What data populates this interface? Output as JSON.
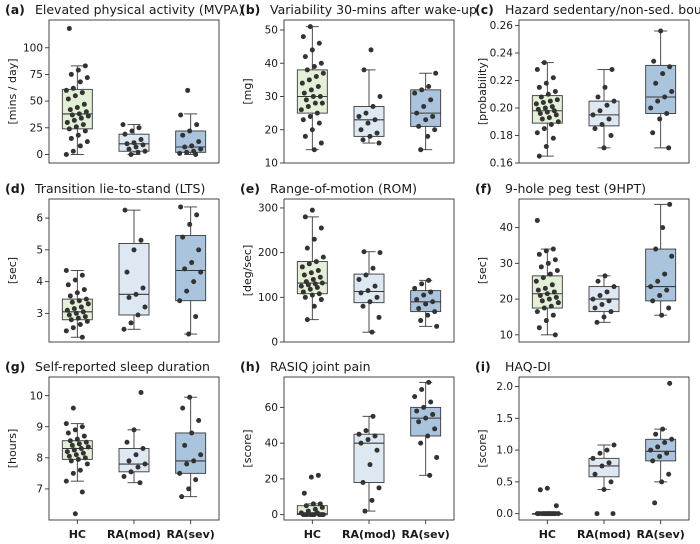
{
  "figure": {
    "x_categories": [
      "HC",
      "RA(mod)",
      "RA(sev)"
    ]
  },
  "colors": {
    "HC": "#e3efd6",
    "RA(mod)": "#dde8f2",
    "RA(sev)": "#a9c4dc"
  },
  "chart_data": [
    {
      "type": "box",
      "label": "(a)",
      "title": "Elevated physical activity (MVPA)",
      "ylabel": "[mins / day]",
      "ylim": [
        -8,
        126
      ],
      "yticks": [
        0,
        25,
        50,
        75,
        100
      ],
      "groups": [
        {
          "name": "HC",
          "q1": 24,
          "median": 38,
          "q3": 61,
          "whisker_low": 0,
          "whisker_high": 83,
          "points": [
            0,
            3,
            8,
            12,
            15,
            18,
            22,
            24,
            26,
            28,
            30,
            32,
            34,
            36,
            37,
            38,
            40,
            42,
            44,
            47,
            52,
            55,
            58,
            60,
            62,
            68,
            72,
            75,
            79,
            83,
            118
          ]
        },
        {
          "name": "RA(mod)",
          "q1": 3,
          "median": 10,
          "q3": 19,
          "whisker_low": 0,
          "whisker_high": 28,
          "points": [
            0,
            2,
            3,
            5,
            7,
            9,
            10,
            11,
            14,
            19,
            22,
            25,
            28
          ]
        },
        {
          "name": "RA(sev)",
          "q1": 2,
          "median": 7,
          "q3": 22,
          "whisker_low": 0,
          "whisker_high": 38,
          "points": [
            0,
            1,
            2,
            3,
            5,
            7,
            8,
            12,
            18,
            22,
            28,
            37,
            60
          ]
        }
      ]
    },
    {
      "type": "box",
      "label": "(b)",
      "title": "Variability 30-mins after wake-up",
      "ylabel": "[mg]",
      "ylim": [
        10,
        53
      ],
      "yticks": [
        10,
        20,
        30,
        40,
        50
      ],
      "groups": [
        {
          "name": "HC",
          "q1": 25,
          "median": 30,
          "q3": 38,
          "whisker_low": 14,
          "whisker_high": 51,
          "points": [
            14,
            16,
            18,
            20,
            22,
            23,
            24,
            25,
            26,
            27,
            28,
            28,
            29,
            30,
            30,
            31,
            32,
            33,
            34,
            35,
            36,
            37,
            38,
            39,
            40,
            42,
            44,
            46,
            48,
            51
          ]
        },
        {
          "name": "RA(mod)",
          "q1": 18,
          "median": 23,
          "q3": 27,
          "whisker_low": 16,
          "whisker_high": 38,
          "points": [
            16,
            17,
            18,
            19,
            20,
            22,
            23,
            24,
            25,
            27,
            30,
            38,
            44
          ]
        },
        {
          "name": "RA(sev)",
          "q1": 21,
          "median": 25,
          "q3": 32,
          "whisker_low": 14,
          "whisker_high": 37,
          "points": [
            14,
            18,
            20,
            21,
            23,
            24,
            25,
            27,
            29,
            31,
            32,
            33,
            37
          ]
        }
      ]
    },
    {
      "type": "box",
      "label": "(c)",
      "title": "Hazard sedentary/non-sed. bouts",
      "ylabel": "[probability]",
      "ylim": [
        0.16,
        0.264
      ],
      "yticks": [
        0.16,
        0.18,
        0.2,
        0.22,
        0.24,
        0.26
      ],
      "groups": [
        {
          "name": "HC",
          "q1": 0.189,
          "median": 0.198,
          "q3": 0.209,
          "whisker_low": 0.165,
          "whisker_high": 0.233,
          "points": [
            0.165,
            0.172,
            0.178,
            0.182,
            0.185,
            0.188,
            0.19,
            0.192,
            0.193,
            0.195,
            0.196,
            0.197,
            0.198,
            0.199,
            0.2,
            0.201,
            0.203,
            0.204,
            0.205,
            0.206,
            0.208,
            0.21,
            0.212,
            0.215,
            0.218,
            0.222,
            0.228,
            0.233
          ]
        },
        {
          "name": "RA(mod)",
          "q1": 0.187,
          "median": 0.195,
          "q3": 0.205,
          "whisker_low": 0.171,
          "whisker_high": 0.228,
          "points": [
            0.171,
            0.18,
            0.185,
            0.188,
            0.192,
            0.195,
            0.198,
            0.202,
            0.205,
            0.208,
            0.215,
            0.228
          ]
        },
        {
          "name": "RA(sev)",
          "q1": 0.196,
          "median": 0.208,
          "q3": 0.231,
          "whisker_low": 0.171,
          "whisker_high": 0.256,
          "points": [
            0.171,
            0.182,
            0.192,
            0.196,
            0.2,
            0.205,
            0.208,
            0.212,
            0.218,
            0.225,
            0.23,
            0.234,
            0.256
          ]
        }
      ]
    },
    {
      "type": "box",
      "label": "(d)",
      "title": "Transition lie-to-stand (LTS)",
      "ylabel": "[sec]",
      "ylim": [
        2.1,
        6.6
      ],
      "yticks": [
        3,
        4,
        5,
        6
      ],
      "groups": [
        {
          "name": "HC",
          "q1": 2.8,
          "median": 3.05,
          "q3": 3.45,
          "whisker_low": 2.25,
          "whisker_high": 4.35,
          "points": [
            2.25,
            2.45,
            2.55,
            2.65,
            2.75,
            2.8,
            2.85,
            2.9,
            2.95,
            3.0,
            3.05,
            3.1,
            3.15,
            3.2,
            3.3,
            3.35,
            3.4,
            3.45,
            3.55,
            3.65,
            3.75,
            3.9,
            4.05,
            4.2,
            4.35
          ]
        },
        {
          "name": "RA(mod)",
          "q1": 2.95,
          "median": 3.6,
          "q3": 5.2,
          "whisker_low": 2.5,
          "whisker_high": 6.25,
          "points": [
            2.5,
            2.7,
            2.95,
            3.2,
            3.5,
            3.6,
            3.8,
            4.3,
            5.0,
            5.3,
            6.25
          ]
        },
        {
          "name": "RA(sev)",
          "q1": 3.4,
          "median": 4.35,
          "q3": 5.45,
          "whisker_low": 2.35,
          "whisker_high": 6.35,
          "points": [
            2.35,
            2.9,
            3.4,
            3.7,
            4.0,
            4.3,
            4.4,
            4.6,
            5.0,
            5.4,
            5.8,
            6.1,
            6.35
          ]
        }
      ]
    },
    {
      "type": "box",
      "label": "(e)",
      "title": "Range-of-motion (ROM)",
      "ylabel": "[deg/sec]",
      "ylim": [
        0,
        320
      ],
      "yticks": [
        0,
        100,
        200,
        300
      ],
      "groups": [
        {
          "name": "HC",
          "q1": 108,
          "median": 132,
          "q3": 180,
          "whisker_low": 50,
          "whisker_high": 280,
          "points": [
            50,
            80,
            95,
            100,
            105,
            108,
            112,
            118,
            122,
            125,
            128,
            130,
            132,
            135,
            140,
            145,
            150,
            155,
            160,
            168,
            175,
            180,
            190,
            210,
            230,
            255,
            280,
            295
          ]
        },
        {
          "name": "RA(mod)",
          "q1": 88,
          "median": 113,
          "q3": 152,
          "whisker_low": 22,
          "whisker_high": 202,
          "points": [
            22,
            55,
            80,
            90,
            100,
            110,
            115,
            125,
            140,
            150,
            165,
            200,
            202
          ]
        },
        {
          "name": "RA(sev)",
          "q1": 68,
          "median": 90,
          "q3": 115,
          "whisker_low": 35,
          "whisker_high": 138,
          "points": [
            35,
            48,
            60,
            68,
            75,
            85,
            90,
            95,
            105,
            112,
            120,
            130,
            138
          ]
        }
      ]
    },
    {
      "type": "box",
      "label": "(f)",
      "title": "9-hole peg test (9HPT)",
      "ylabel": "[sec]",
      "ylim": [
        8,
        48
      ],
      "yticks": [
        10,
        20,
        30,
        40
      ],
      "groups": [
        {
          "name": "HC",
          "q1": 17.5,
          "median": 21.5,
          "q3": 26.5,
          "whisker_low": 10,
          "whisker_high": 34,
          "points": [
            10,
            12,
            14,
            15.5,
            16.5,
            17.5,
            18,
            19,
            19.5,
            20,
            20.5,
            21,
            21.5,
            22,
            22.5,
            23,
            24,
            25,
            26,
            27,
            28,
            29,
            30,
            31,
            32.5,
            33.5,
            34,
            42
          ]
        },
        {
          "name": "RA(mod)",
          "q1": 16.5,
          "median": 20,
          "q3": 23.5,
          "whisker_low": 13.5,
          "whisker_high": 26.5,
          "points": [
            13.5,
            15,
            16.5,
            17.5,
            18.5,
            19.5,
            20,
            21,
            22,
            23.5,
            25,
            26.5
          ]
        },
        {
          "name": "RA(sev)",
          "q1": 19.5,
          "median": 23.5,
          "q3": 34,
          "whisker_low": 15.5,
          "whisker_high": 46.5,
          "points": [
            15.5,
            17.5,
            19.5,
            21,
            22.5,
            23.5,
            25,
            27,
            32,
            34,
            40,
            46.5
          ]
        }
      ]
    },
    {
      "type": "box",
      "label": "(g)",
      "title": "Self-reported sleep duration",
      "ylabel": "[hours]",
      "ylim": [
        6.0,
        10.6
      ],
      "yticks": [
        7,
        8,
        9,
        10
      ],
      "groups": [
        {
          "name": "HC",
          "q1": 7.95,
          "median": 8.3,
          "q3": 8.55,
          "whisker_low": 7.25,
          "whisker_high": 9.1,
          "points": [
            6.2,
            6.9,
            7.25,
            7.5,
            7.6,
            7.8,
            7.9,
            7.95,
            8.0,
            8.05,
            8.1,
            8.15,
            8.2,
            8.25,
            8.3,
            8.35,
            8.4,
            8.45,
            8.5,
            8.55,
            8.6,
            8.7,
            8.8,
            8.9,
            9.0,
            9.1,
            9.6
          ]
        },
        {
          "name": "RA(mod)",
          "q1": 7.55,
          "median": 7.8,
          "q3": 8.3,
          "whisker_low": 7.2,
          "whisker_high": 8.9,
          "points": [
            7.2,
            7.4,
            7.55,
            7.7,
            7.8,
            7.9,
            8.1,
            8.3,
            8.5,
            8.9,
            10.1
          ]
        },
        {
          "name": "RA(sev)",
          "q1": 7.5,
          "median": 7.9,
          "q3": 8.8,
          "whisker_low": 6.75,
          "whisker_high": 9.95,
          "points": [
            6.75,
            7.0,
            7.3,
            7.5,
            7.8,
            7.9,
            8.1,
            8.4,
            8.8,
            9.2,
            9.6,
            9.95
          ]
        }
      ]
    },
    {
      "type": "box",
      "label": "(h)",
      "title": "RASIQ joint pain",
      "ylabel": "[score]",
      "ylim": [
        -3,
        77
      ],
      "yticks": [
        0,
        20,
        40,
        60
      ],
      "groups": [
        {
          "name": "HC",
          "q1": 0,
          "median": 0.5,
          "q3": 5,
          "whisker_low": 0,
          "whisker_high": 6,
          "points": [
            0,
            0,
            0,
            0,
            0,
            0,
            0,
            0,
            0,
            1,
            1,
            2,
            3,
            4,
            5,
            6,
            6,
            12,
            21,
            22
          ]
        },
        {
          "name": "RA(mod)",
          "q1": 18,
          "median": 40,
          "q3": 45,
          "whisker_low": 2,
          "whisker_high": 55,
          "points": [
            2,
            8,
            15,
            18,
            28,
            36,
            40,
            42,
            44,
            45,
            47,
            55
          ]
        },
        {
          "name": "RA(sev)",
          "q1": 44,
          "median": 54,
          "q3": 60,
          "whisker_low": 22,
          "whisker_high": 74,
          "points": [
            22,
            32,
            40,
            44,
            48,
            52,
            54,
            56,
            58,
            60,
            63,
            66,
            70,
            74
          ]
        }
      ]
    },
    {
      "type": "box",
      "label": "(i)",
      "title": "HAQ-DI",
      "ylabel": "[score]",
      "ylim": [
        -0.1,
        2.15
      ],
      "yticks": [
        0.0,
        0.5,
        1.0,
        1.5,
        2.0
      ],
      "groups": [
        {
          "name": "HC",
          "q1": 0,
          "median": 0,
          "q3": 0,
          "whisker_low": 0,
          "whisker_high": 0,
          "points": [
            0,
            0,
            0,
            0,
            0,
            0,
            0,
            0,
            0,
            0,
            0,
            0.125,
            0.375,
            0.4
          ]
        },
        {
          "name": "RA(mod)",
          "q1": 0.58,
          "median": 0.75,
          "q3": 0.87,
          "whisker_low": 0.38,
          "whisker_high": 1.08,
          "points": [
            0,
            0,
            0.38,
            0.5,
            0.62,
            0.75,
            0.8,
            0.87,
            0.95,
            1.0,
            1.08
          ]
        },
        {
          "name": "RA(sev)",
          "q1": 0.83,
          "median": 0.98,
          "q3": 1.17,
          "whisker_low": 0.5,
          "whisker_high": 1.33,
          "points": [
            0.17,
            0.5,
            0.62,
            0.83,
            0.9,
            0.95,
            1.0,
            1.05,
            1.12,
            1.17,
            1.25,
            1.33,
            2.05
          ]
        }
      ]
    }
  ]
}
